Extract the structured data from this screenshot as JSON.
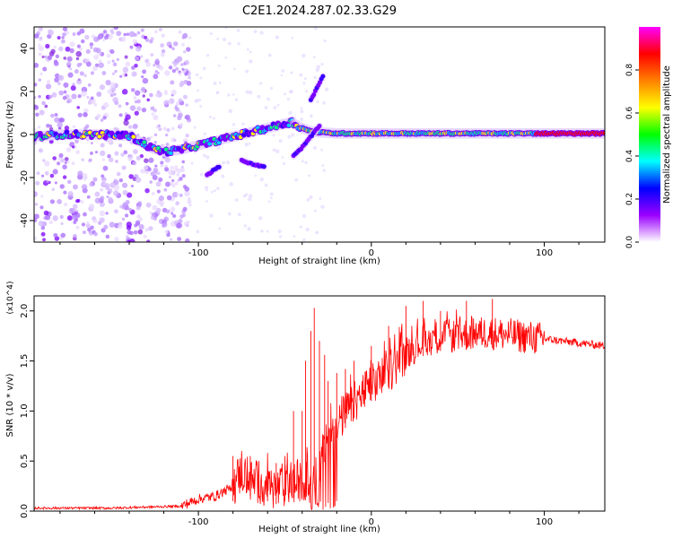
{
  "title": "C2E1.2024.287.02.33.G29",
  "chart_data": [
    {
      "type": "heatmap",
      "xlabel": "Height of straight line (km)",
      "ylabel": "Frequency (Hz)",
      "xlim": [
        -195,
        135
      ],
      "ylim": [
        -50,
        50
      ],
      "xticks": [
        -100,
        0,
        100
      ],
      "yticks": [
        -40,
        -20,
        0,
        20,
        40
      ],
      "colorbar": {
        "label": "Normalized spectral amplitude",
        "range": [
          0,
          1
        ],
        "ticks": [
          "0.0",
          "0.2",
          "0.4",
          "0.6",
          "0.8"
        ],
        "colors": [
          "#ffffff",
          "#9b00ff",
          "#0000ff",
          "#00ffff",
          "#00ff00",
          "#ffff00",
          "#ff8000",
          "#ff0000",
          "#ff00ff"
        ]
      },
      "tracks": [
        {
          "name": "",
          "x": [
            -195,
            -180,
            -160,
            -140,
            -128,
            -120,
            -110,
            -100,
            -90,
            -80,
            -70,
            -60,
            -50,
            -45
          ],
          "y": [
            -1,
            0,
            0,
            -0.5,
            -6,
            -8,
            -7,
            -5,
            -3,
            -1,
            1,
            3,
            5,
            6
          ]
        },
        {
          "name": "",
          "x": [
            -45,
            -40,
            -35,
            -30,
            -20,
            -10,
            0,
            20,
            40,
            60,
            80,
            100,
            110,
            135
          ],
          "y": [
            5,
            3,
            1.5,
            1,
            0.5,
            0.5,
            0.5,
            0.5,
            0.5,
            0.5,
            0.5,
            0.5,
            0.5,
            0.5
          ]
        },
        {
          "name": "",
          "x": [
            -75,
            -68,
            -62
          ],
          "y": [
            -12,
            -14,
            -15
          ]
        },
        {
          "name": "",
          "x": [
            -45,
            -40,
            -35,
            -30
          ],
          "y": [
            -10,
            -6,
            -1,
            4
          ]
        },
        {
          "name": "",
          "x": [
            -35,
            -33,
            -30,
            -28
          ],
          "y": [
            16,
            19,
            24,
            27
          ]
        },
        {
          "name": "",
          "x": [
            -95,
            -92,
            -88
          ],
          "y": [
            -19,
            -17,
            -15
          ]
        }
      ]
    },
    {
      "type": "line",
      "xlabel": "Height of straight line (km)",
      "ylabel": "SNR (10 * v/v)",
      "y_multiplier": "(x10^4)",
      "xlim": [
        -195,
        135
      ],
      "ylim": [
        0,
        2.15
      ],
      "xticks": [
        -100,
        0,
        100
      ],
      "yticks": [
        0.0,
        0.5,
        1.0,
        1.5,
        2.0
      ],
      "color": "#ff0000",
      "series": [
        {
          "name": "",
          "x": [
            -195,
            -170,
            -150,
            -130,
            -110,
            -100,
            -90,
            -80,
            -75,
            -70,
            -65,
            -60,
            -55,
            -50,
            -45,
            -40,
            -35,
            -30,
            -28,
            -25,
            -20,
            -15,
            -10,
            -5,
            0,
            10,
            20,
            30,
            40,
            50,
            60,
            70,
            80,
            90,
            100,
            110,
            120,
            135
          ],
          "y": [
            0.03,
            0.03,
            0.03,
            0.04,
            0.05,
            0.12,
            0.15,
            0.25,
            0.4,
            0.3,
            0.28,
            0.25,
            0.22,
            0.25,
            0.28,
            0.28,
            0.4,
            0.45,
            0.6,
            0.72,
            0.88,
            0.98,
            1.08,
            1.18,
            1.25,
            1.4,
            1.58,
            1.7,
            1.75,
            1.75,
            1.78,
            1.78,
            1.76,
            1.74,
            1.72,
            1.7,
            1.68,
            1.65
          ]
        }
      ],
      "spikes": {
        "x": [
          -80,
          -75,
          -70,
          -65,
          -60,
          -55,
          -50,
          -45,
          -40,
          -38,
          -35,
          -33,
          -30,
          -27,
          -25,
          -20,
          -15,
          -10,
          0,
          10,
          20,
          30,
          40,
          55,
          70
        ],
        "y": [
          0.55,
          0.6,
          0.55,
          0.5,
          0.4,
          0.48,
          0.55,
          1.0,
          1.0,
          1.5,
          1.8,
          2.03,
          1.7,
          1.56,
          1.3,
          1.38,
          1.42,
          1.5,
          1.65,
          1.85,
          2.05,
          2.1,
          2.0,
          2.1,
          2.12
        ]
      }
    }
  ]
}
